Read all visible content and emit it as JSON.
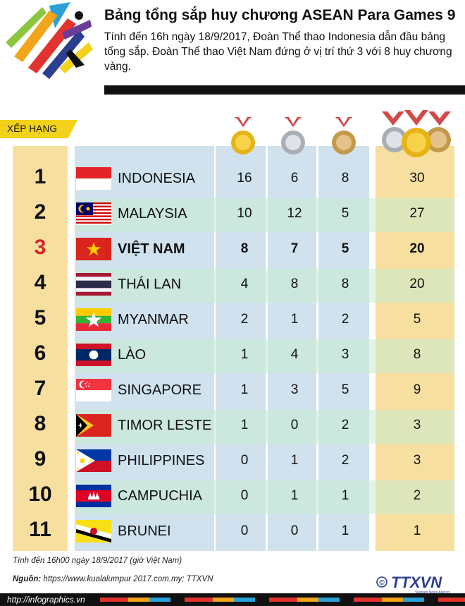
{
  "header": {
    "title": "Bảng tổng sắp huy chương ASEAN Para Games 9",
    "description": "Tính đến 16h ngày 18/9/2017, Đoàn Thể thao Indonesia dẫn đầu bảng tổng sắp. Đoàn Thể thao Việt Nam đứng ở vị trí thứ 3 với 8 huy chương vàng."
  },
  "table": {
    "rank_header": "XẾP HẠNG",
    "rows": [
      {
        "rank": "1",
        "country": "INDONESIA",
        "gold": "16",
        "silver": "6",
        "bronze": "8",
        "total": "30",
        "flag": "indonesia-flag"
      },
      {
        "rank": "2",
        "country": "MALAYSIA",
        "gold": "10",
        "silver": "12",
        "bronze": "5",
        "total": "27",
        "flag": "malaysia-flag"
      },
      {
        "rank": "3",
        "country": "VIỆT NAM",
        "gold": "8",
        "silver": "7",
        "bronze": "5",
        "total": "20",
        "flag": "vietnam-flag",
        "highlight": true
      },
      {
        "rank": "4",
        "country": "THÁI LAN",
        "gold": "4",
        "silver": "8",
        "bronze": "8",
        "total": "20",
        "flag": "thailand-flag"
      },
      {
        "rank": "5",
        "country": "MYANMAR",
        "gold": "2",
        "silver": "1",
        "bronze": "2",
        "total": "5",
        "flag": "myanmar-flag"
      },
      {
        "rank": "6",
        "country": "LÀO",
        "gold": "1",
        "silver": "4",
        "bronze": "3",
        "total": "8",
        "flag": "laos-flag"
      },
      {
        "rank": "7",
        "country": "SINGAPORE",
        "gold": "1",
        "silver": "3",
        "bronze": "5",
        "total": "9",
        "flag": "singapore-flag"
      },
      {
        "rank": "8",
        "country": "TIMOR LESTE",
        "gold": "1",
        "silver": "0",
        "bronze": "2",
        "total": "3",
        "flag": "timor-leste-flag"
      },
      {
        "rank": "9",
        "country": "PHILIPPINES",
        "gold": "0",
        "silver": "1",
        "bronze": "2",
        "total": "3",
        "flag": "philippines-flag"
      },
      {
        "rank": "10",
        "country": "CAMPUCHIA",
        "gold": "0",
        "silver": "1",
        "bronze": "1",
        "total": "2",
        "flag": "cambodia-flag"
      },
      {
        "rank": "11",
        "country": "BRUNEI",
        "gold": "0",
        "silver": "0",
        "bronze": "1",
        "total": "1",
        "flag": "brunei-flag"
      }
    ]
  },
  "footer": {
    "note": "Tính đến 16h00 ngày 18/9/2017 (giờ Việt Nam)",
    "source_label": "Nguồn:",
    "source_text": " https://www.kualalumpur 2017.com.my; TTXVN",
    "website": "http://infographics.vn",
    "logo_text": "TTXVN",
    "logo_subtext": "Vietnam News Agency",
    "copyright_symbol": "©"
  },
  "colors": {
    "rank_column": "#f7dfa0",
    "country_column": "#cfe2ee",
    "highlight_rank": "#d4242a",
    "rank_tag": "#f2d21b"
  }
}
